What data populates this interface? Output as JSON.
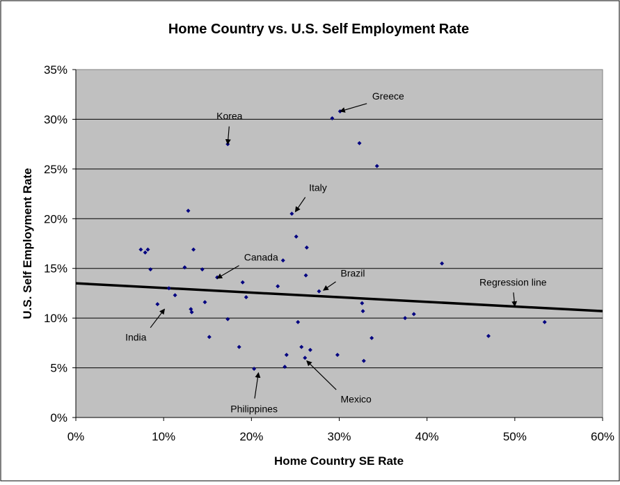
{
  "chart_data": {
    "type": "scatter",
    "title": "Home Country vs. U.S. Self Employment Rate",
    "xlabel": "Home Country SE Rate",
    "ylabel": "U.S. Self Employment Rate",
    "xlim": [
      0,
      0.6
    ],
    "ylim": [
      0,
      0.35
    ],
    "x_ticks": [
      0,
      0.1,
      0.2,
      0.3,
      0.4,
      0.5,
      0.6
    ],
    "x_tick_labels": [
      "0%",
      "10%",
      "20%",
      "30%",
      "40%",
      "50%",
      "60%"
    ],
    "y_ticks": [
      0,
      0.05,
      0.1,
      0.15,
      0.2,
      0.25,
      0.3,
      0.35
    ],
    "y_tick_labels": [
      "0%",
      "5%",
      "10%",
      "15%",
      "20%",
      "25%",
      "30%",
      "35%"
    ],
    "grid": "horizontal",
    "plot_background": "#c0c0c0",
    "marker_color": "#000080",
    "line_color": "#000000",
    "points": [
      {
        "x": 0.074,
        "y": 0.169
      },
      {
        "x": 0.079,
        "y": 0.166
      },
      {
        "x": 0.082,
        "y": 0.169
      },
      {
        "x": 0.085,
        "y": 0.149
      },
      {
        "x": 0.093,
        "y": 0.114
      },
      {
        "x": 0.106,
        "y": 0.13
      },
      {
        "x": 0.113,
        "y": 0.123
      },
      {
        "x": 0.124,
        "y": 0.151
      },
      {
        "x": 0.128,
        "y": 0.208
      },
      {
        "x": 0.131,
        "y": 0.109
      },
      {
        "x": 0.132,
        "y": 0.106
      },
      {
        "x": 0.134,
        "y": 0.169
      },
      {
        "x": 0.144,
        "y": 0.149
      },
      {
        "x": 0.147,
        "y": 0.116
      },
      {
        "x": 0.152,
        "y": 0.081
      },
      {
        "x": 0.161,
        "y": 0.141
      },
      {
        "x": 0.173,
        "y": 0.099
      },
      {
        "x": 0.173,
        "y": 0.275
      },
      {
        "x": 0.186,
        "y": 0.071
      },
      {
        "x": 0.19,
        "y": 0.136
      },
      {
        "x": 0.194,
        "y": 0.121
      },
      {
        "x": 0.203,
        "y": 0.049
      },
      {
        "x": 0.23,
        "y": 0.132
      },
      {
        "x": 0.236,
        "y": 0.158
      },
      {
        "x": 0.238,
        "y": 0.051
      },
      {
        "x": 0.24,
        "y": 0.063
      },
      {
        "x": 0.246,
        "y": 0.205
      },
      {
        "x": 0.251,
        "y": 0.182
      },
      {
        "x": 0.253,
        "y": 0.096
      },
      {
        "x": 0.257,
        "y": 0.071
      },
      {
        "x": 0.261,
        "y": 0.06
      },
      {
        "x": 0.262,
        "y": 0.143
      },
      {
        "x": 0.263,
        "y": 0.171
      },
      {
        "x": 0.267,
        "y": 0.068
      },
      {
        "x": 0.277,
        "y": 0.127
      },
      {
        "x": 0.292,
        "y": 0.301
      },
      {
        "x": 0.298,
        "y": 0.063
      },
      {
        "x": 0.301,
        "y": 0.308
      },
      {
        "x": 0.323,
        "y": 0.276
      },
      {
        "x": 0.326,
        "y": 0.115
      },
      {
        "x": 0.327,
        "y": 0.107
      },
      {
        "x": 0.328,
        "y": 0.057
      },
      {
        "x": 0.337,
        "y": 0.08
      },
      {
        "x": 0.343,
        "y": 0.253
      },
      {
        "x": 0.375,
        "y": 0.1
      },
      {
        "x": 0.385,
        "y": 0.104
      },
      {
        "x": 0.417,
        "y": 0.155
      },
      {
        "x": 0.47,
        "y": 0.082
      },
      {
        "x": 0.534,
        "y": 0.096
      }
    ],
    "regression_line": {
      "x1": 0,
      "y1": 0.135,
      "x2": 0.6,
      "y2": 0.107
    },
    "annotations": [
      {
        "label": "Greece",
        "point": {
          "x": 0.301,
          "y": 0.308
        },
        "text": {
          "x": 0.336,
          "y": 0.317
        }
      },
      {
        "label": "Korea",
        "point": {
          "x": 0.173,
          "y": 0.275
        },
        "text": {
          "x": 0.175,
          "y": 0.297
        }
      },
      {
        "label": "Italy",
        "point": {
          "x": 0.25,
          "y": 0.207
        },
        "text": {
          "x": 0.264,
          "y": 0.225
        }
      },
      {
        "label": "Canada",
        "point": {
          "x": 0.161,
          "y": 0.14
        },
        "text": {
          "x": 0.19,
          "y": 0.155
        }
      },
      {
        "label": "Brazil",
        "point": {
          "x": 0.282,
          "y": 0.128
        },
        "text": {
          "x": 0.3,
          "y": 0.139
        }
      },
      {
        "label": "India",
        "point": {
          "x": 0.101,
          "y": 0.109
        },
        "text": {
          "x": 0.082,
          "y": 0.087
        }
      },
      {
        "label": "Regression line",
        "point": {
          "x": 0.5,
          "y": 0.112
        },
        "text": {
          "x": 0.498,
          "y": 0.13
        }
      },
      {
        "label": "Mexico",
        "point": {
          "x": 0.263,
          "y": 0.057
        },
        "text": {
          "x": 0.3,
          "y": 0.025
        }
      },
      {
        "label": "Philippines",
        "point": {
          "x": 0.208,
          "y": 0.045
        },
        "text": {
          "x": 0.203,
          "y": 0.015
        }
      }
    ]
  }
}
